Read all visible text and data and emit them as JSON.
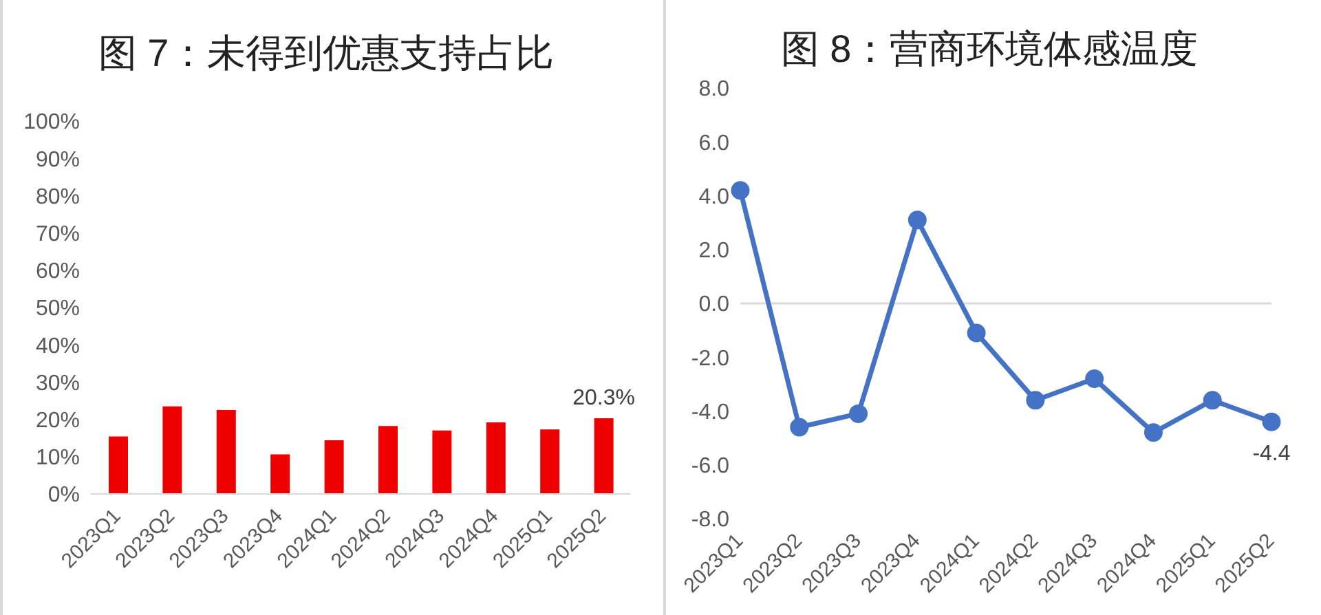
{
  "chart_data": [
    {
      "type": "bar",
      "title": "图 7：未得到优惠支持占比",
      "categories": [
        "2023Q1",
        "2023Q2",
        "2023Q3",
        "2023Q4",
        "2024Q1",
        "2024Q2",
        "2024Q3",
        "2024Q4",
        "2025Q1",
        "2025Q2"
      ],
      "values": [
        15.4,
        23.5,
        22.5,
        10.6,
        14.4,
        18.2,
        17.0,
        19.2,
        17.3,
        20.3
      ],
      "value_labels": [
        null,
        null,
        null,
        null,
        null,
        null,
        null,
        null,
        null,
        "20.3%"
      ],
      "color": "#ee0000",
      "ylim": [
        0,
        100
      ],
      "yticks": [
        {
          "value": 0,
          "label": "0%"
        },
        {
          "value": 10,
          "label": "10%"
        },
        {
          "value": 20,
          "label": "20%"
        },
        {
          "value": 30,
          "label": "30%"
        },
        {
          "value": 40,
          "label": "40%"
        },
        {
          "value": 50,
          "label": "50%"
        },
        {
          "value": 60,
          "label": "60%"
        },
        {
          "value": 70,
          "label": "70%"
        },
        {
          "value": 80,
          "label": "80%"
        },
        {
          "value": 90,
          "label": "90%"
        },
        {
          "value": 100,
          "label": "100%"
        }
      ],
      "grid": false,
      "legend": false
    },
    {
      "type": "line",
      "title": "图 8：营商环境体感温度",
      "categories": [
        "2023Q1",
        "2023Q2",
        "2023Q3",
        "2023Q4",
        "2024Q1",
        "2024Q2",
        "2024Q3",
        "2024Q4",
        "2025Q1",
        "2025Q2"
      ],
      "values": [
        4.2,
        -4.6,
        -4.1,
        3.1,
        -1.1,
        -3.6,
        -2.8,
        -4.8,
        -3.6,
        -4.4
      ],
      "value_labels": [
        null,
        null,
        null,
        null,
        null,
        null,
        null,
        null,
        null,
        "-4.4"
      ],
      "color": "#4472c4",
      "marker": "circle",
      "line_style": "solid",
      "ylim": [
        -8,
        8
      ],
      "yticks": [
        {
          "value": -8,
          "label": "-8.0"
        },
        {
          "value": -6,
          "label": "-6.0"
        },
        {
          "value": -4,
          "label": "-4.0"
        },
        {
          "value": -2,
          "label": "-2.0"
        },
        {
          "value": 0,
          "label": "0.0"
        },
        {
          "value": 2,
          "label": "2.0"
        },
        {
          "value": 4,
          "label": "4.0"
        },
        {
          "value": 6,
          "label": "6.0"
        },
        {
          "value": 8,
          "label": "8.0"
        }
      ],
      "ref_lines": [
        {
          "axis": "y",
          "value": 0,
          "color": "#d9d9d9"
        }
      ],
      "grid": false,
      "legend": false
    }
  ]
}
